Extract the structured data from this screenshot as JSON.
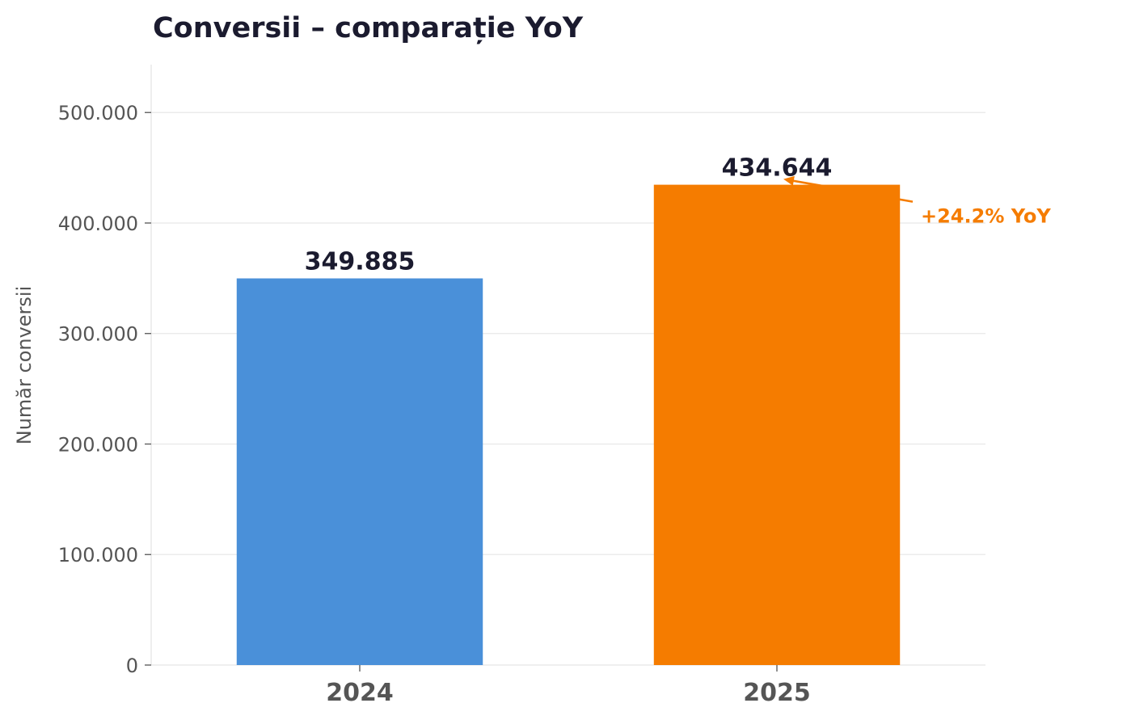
{
  "chart_data": {
    "type": "bar",
    "title": "Conversii – comparație YoY",
    "xlabel": "",
    "ylabel": "Număr conversii",
    "categories": [
      "2024",
      "2025"
    ],
    "values": [
      349885,
      434644
    ],
    "value_labels": [
      "349.885",
      "434.644"
    ],
    "colors": [
      "#4a90d9",
      "#f57c00"
    ],
    "ylim": [
      0,
      543305
    ],
    "yticks": [
      0,
      100000,
      200000,
      300000,
      400000,
      500000
    ],
    "ytick_labels": [
      "0",
      "100.000",
      "200.000",
      "300.000",
      "400.000",
      "500.000"
    ],
    "grid": true,
    "annotation": {
      "text": "+24.2% YoY",
      "target_category": "2025",
      "color": "#f57c00"
    }
  }
}
